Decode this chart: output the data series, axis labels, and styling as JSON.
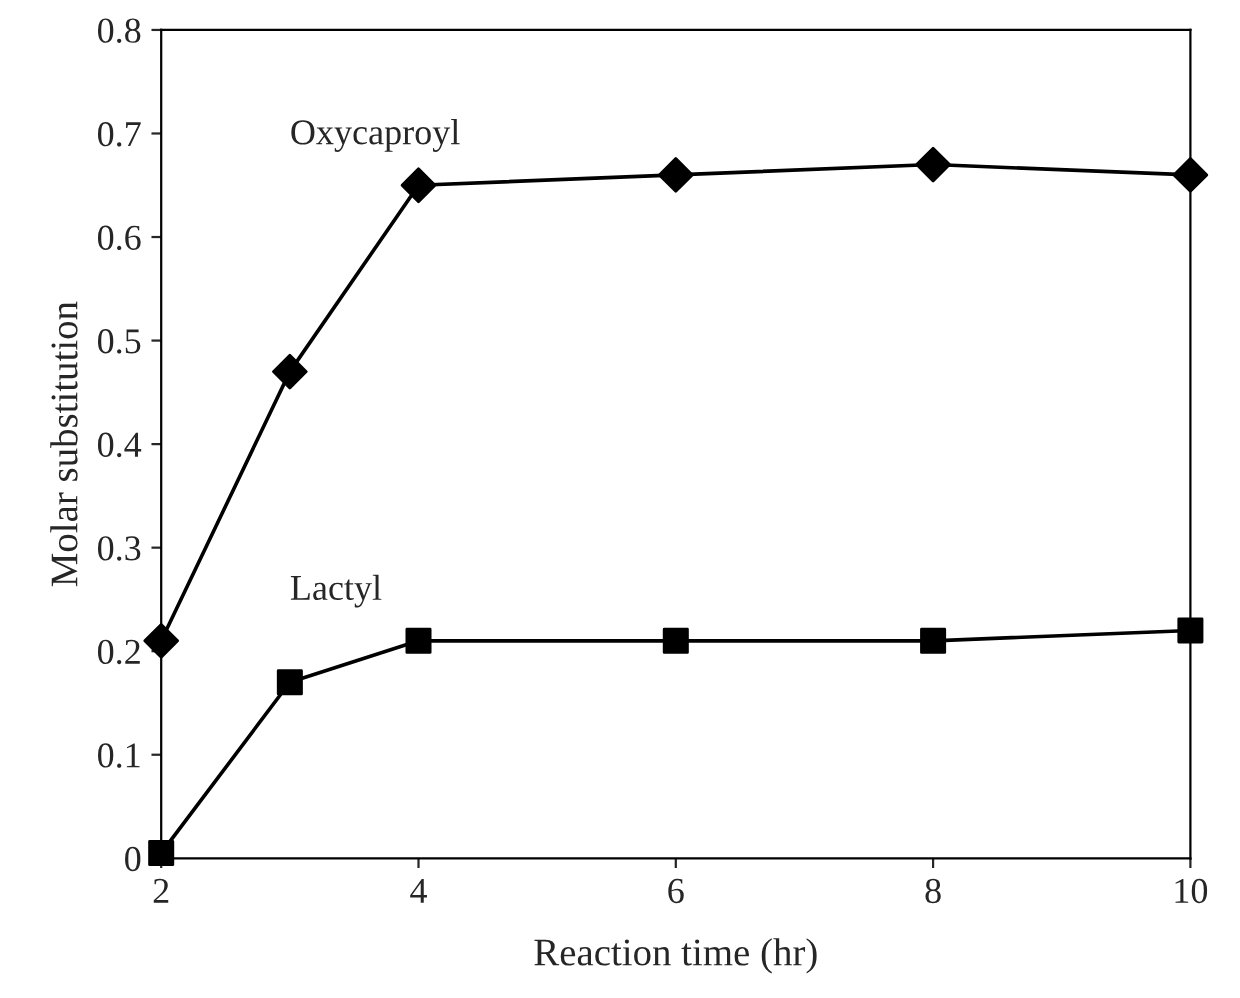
{
  "chart_data": {
    "type": "line",
    "xlabel": "Reaction time (hr)",
    "ylabel": "Molar substitution",
    "x": [
      2,
      3,
      4,
      6,
      8,
      10
    ],
    "series": [
      {
        "name": "Oxycaproyl",
        "color": "#000000",
        "marker": "diamond",
        "values": [
          0.21,
          0.47,
          0.65,
          0.66,
          0.67,
          0.66
        ]
      },
      {
        "name": "Lactyl",
        "color": "#000000",
        "marker": "square",
        "values": [
          0.005,
          0.17,
          0.21,
          0.21,
          0.21,
          0.22
        ]
      }
    ],
    "xlim": [
      2,
      10
    ],
    "xticks": [
      2,
      4,
      6,
      8,
      10
    ],
    "ylim": [
      0,
      0.8
    ],
    "yticks": [
      0,
      0.1,
      0.2,
      0.3,
      0.4,
      0.5,
      0.6,
      0.7,
      0.8
    ],
    "grid": false,
    "legend": false,
    "line_style": "solid"
  }
}
